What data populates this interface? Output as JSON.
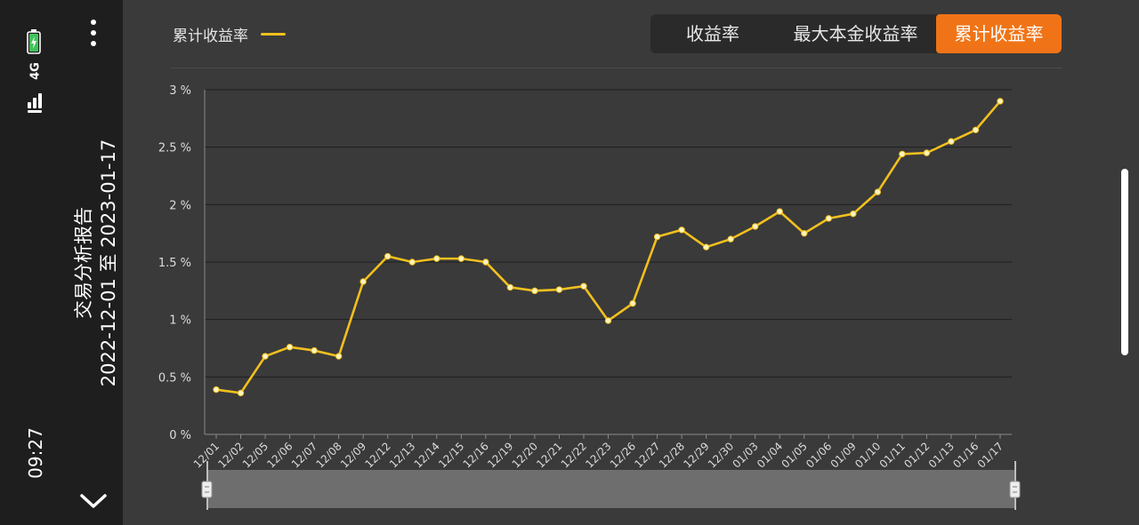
{
  "status_bar": {
    "time": "09:27",
    "network": "4G"
  },
  "report": {
    "title": "交易分析报告",
    "date_range": "2022-12-01 至 2023-01-17"
  },
  "legend": {
    "label": "累计收益率",
    "color": "#f2c01e"
  },
  "tabs": [
    {
      "label": "收益率",
      "active": false
    },
    {
      "label": "最大本金收益率",
      "active": false
    },
    {
      "label": "累计收益率",
      "active": true
    }
  ],
  "colors": {
    "accent": "#f07417",
    "line": "#f2c01e",
    "background": "#3a3a3a",
    "panel": "#1e1e1e"
  },
  "chart_data": {
    "type": "line",
    "categories": [
      "12/01",
      "12/02",
      "12/05",
      "12/06",
      "12/07",
      "12/08",
      "12/09",
      "12/12",
      "12/13",
      "12/14",
      "12/15",
      "12/16",
      "12/19",
      "12/20",
      "12/21",
      "12/22",
      "12/23",
      "12/26",
      "12/27",
      "12/28",
      "12/29",
      "12/30",
      "01/03",
      "01/04",
      "01/05",
      "01/06",
      "01/09",
      "01/10",
      "01/11",
      "01/12",
      "01/13",
      "01/16",
      "01/17"
    ],
    "series": [
      {
        "name": "累计收益率",
        "values": [
          0.39,
          0.36,
          0.68,
          0.76,
          0.73,
          0.68,
          1.33,
          1.55,
          1.5,
          1.53,
          1.53,
          1.5,
          1.28,
          1.25,
          1.26,
          1.29,
          0.99,
          1.14,
          1.72,
          1.78,
          1.63,
          1.7,
          1.81,
          1.94,
          1.75,
          1.88,
          1.92,
          2.11,
          2.44,
          2.45,
          2.55,
          2.65,
          2.9
        ]
      }
    ],
    "ylim": [
      0,
      3
    ],
    "yticks": [
      0,
      0.5,
      1,
      1.5,
      2,
      2.5,
      3
    ],
    "ytick_labels": [
      "0 %",
      "0.5 %",
      "1 %",
      "1.5 %",
      "2 %",
      "2.5 %",
      "3 %"
    ],
    "grid": true,
    "legend_position": "top-left"
  }
}
